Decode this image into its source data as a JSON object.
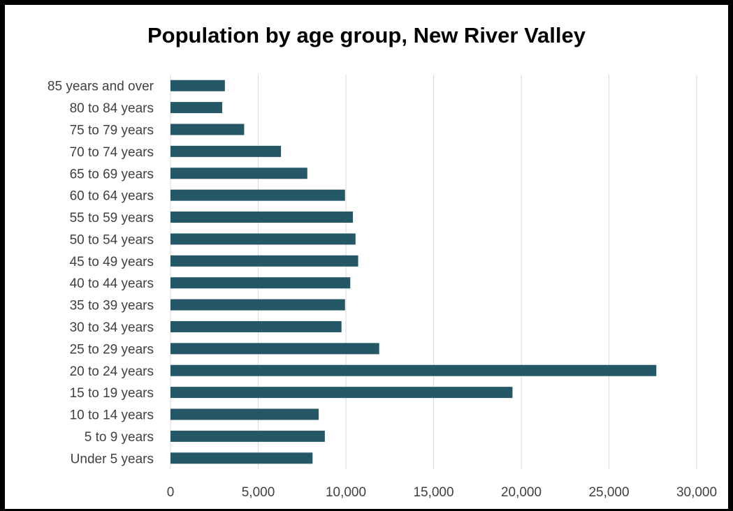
{
  "chart_data": {
    "type": "bar",
    "orientation": "horizontal",
    "title": "Population by age group, New River Valley",
    "categories": [
      "Under 5 years",
      "5 to 9 years",
      "10 to 14 years",
      "15 to 19 years",
      "20 to 24 years",
      "25 to 29 years",
      "30 to 34 years",
      "35 to 39 years",
      "40 to 44 years",
      "45 to 49 years",
      "50 to 54 years",
      "55 to 59 years",
      "60 to 64 years",
      "65 to 69 years",
      "70 to 74 years",
      "75 to 79 years",
      "80 to 84 years",
      "85 years and over"
    ],
    "values": [
      8100,
      8800,
      8450,
      19500,
      27700,
      11900,
      9750,
      9950,
      10250,
      10700,
      10550,
      10400,
      9950,
      7800,
      6300,
      4200,
      2950,
      3100
    ],
    "xlim": [
      0,
      30000
    ],
    "xticks": [
      "0",
      "5,000",
      "10,000",
      "15,000",
      "20,000",
      "25,000",
      "30,000"
    ],
    "xlabel": "",
    "ylabel": "",
    "grid": "vertical",
    "legend": "none",
    "bar_color": "#245866",
    "grid_color": "#d9d9d9"
  }
}
